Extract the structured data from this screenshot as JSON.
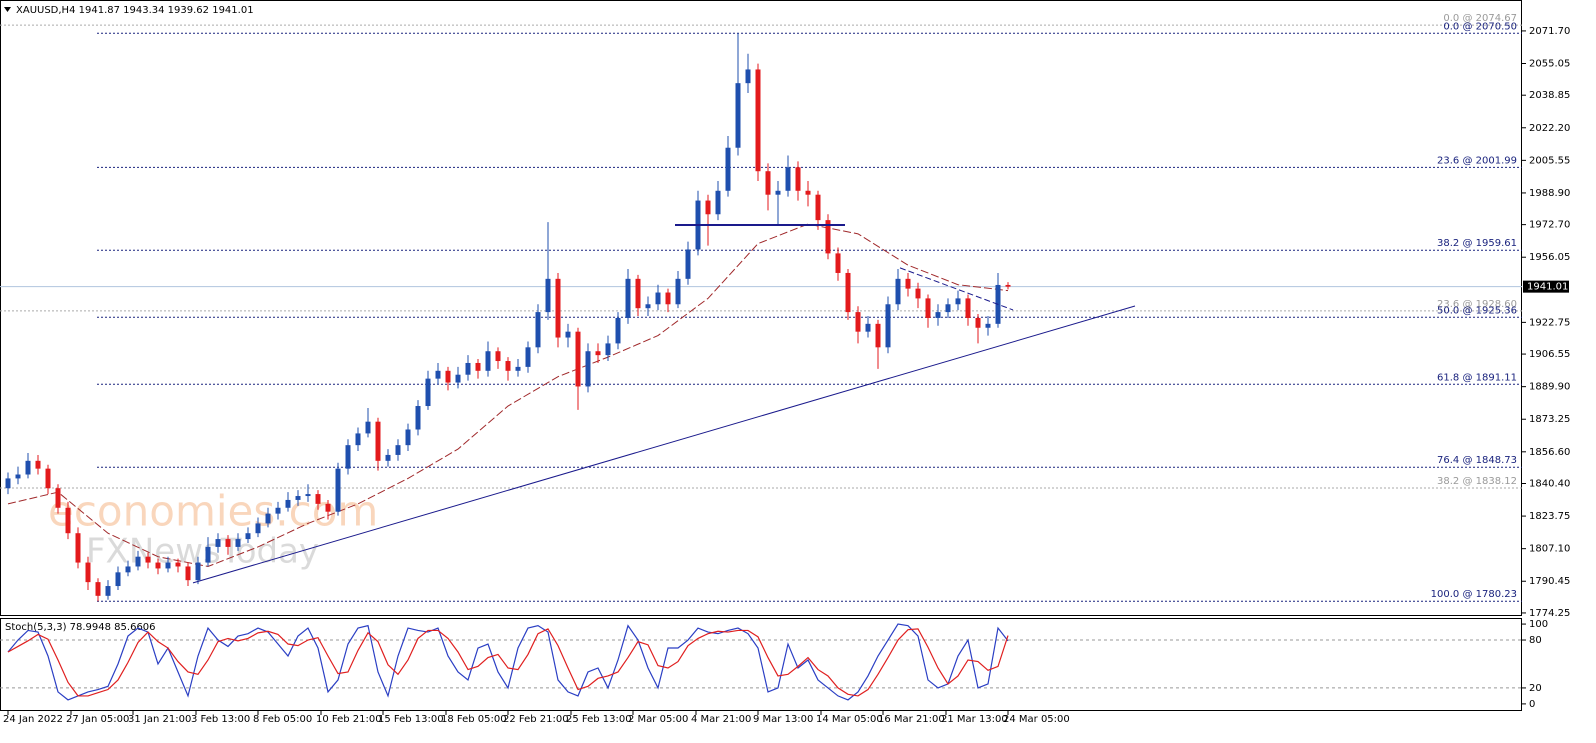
{
  "chart_data": [
    {
      "type": "candlestick",
      "title": "XAUUSD,H4  1941.87 1943.34 1939.62 1941.01",
      "watermarks": [
        "economies.com",
        "FXNewsToday"
      ],
      "up_color": "#1f4fae",
      "down_color": "#e31a1c",
      "ohlc": [
        [
          1838,
          1846,
          1835,
          1843
        ],
        [
          1843,
          1849,
          1840,
          1845
        ],
        [
          1845,
          1856,
          1843,
          1852
        ],
        [
          1852,
          1855,
          1845,
          1848
        ],
        [
          1848,
          1850,
          1835,
          1838
        ],
        [
          1838,
          1840,
          1825,
          1828
        ],
        [
          1828,
          1831,
          1812,
          1815
        ],
        [
          1815,
          1818,
          1797,
          1800
        ],
        [
          1800,
          1803,
          1786,
          1790
        ],
        [
          1790,
          1792,
          1780.23,
          1783
        ],
        [
          1783,
          1791,
          1781,
          1788
        ],
        [
          1788,
          1798,
          1786,
          1795
        ],
        [
          1795,
          1801,
          1793,
          1798
        ],
        [
          1798,
          1806,
          1796,
          1803
        ],
        [
          1803,
          1805,
          1797,
          1800
        ],
        [
          1800,
          1802,
          1794,
          1797
        ],
        [
          1797,
          1803,
          1795,
          1800
        ],
        [
          1800,
          1802,
          1795,
          1798
        ],
        [
          1798,
          1800,
          1788,
          1791
        ],
        [
          1791,
          1803,
          1789,
          1800
        ],
        [
          1800,
          1813,
          1798,
          1808
        ],
        [
          1808,
          1815,
          1805,
          1812
        ],
        [
          1812,
          1814,
          1804,
          1808
        ],
        [
          1808,
          1815,
          1806,
          1812
        ],
        [
          1812,
          1818,
          1810,
          1815
        ],
        [
          1815,
          1823,
          1813,
          1820
        ],
        [
          1820,
          1828,
          1818,
          1825
        ],
        [
          1825,
          1831,
          1822,
          1828
        ],
        [
          1828,
          1836,
          1826,
          1832
        ],
        [
          1832,
          1837,
          1829,
          1834
        ],
        [
          1834,
          1840,
          1831,
          1835
        ],
        [
          1835,
          1837,
          1827,
          1830
        ],
        [
          1830,
          1832,
          1822,
          1826
        ],
        [
          1826,
          1851,
          1824,
          1848
        ],
        [
          1848,
          1863,
          1845,
          1860
        ],
        [
          1860,
          1869,
          1857,
          1866
        ],
        [
          1866,
          1879,
          1864,
          1872
        ],
        [
          1872,
          1874,
          1847,
          1852
        ],
        [
          1852,
          1858,
          1849,
          1855
        ],
        [
          1855,
          1863,
          1852,
          1860
        ],
        [
          1860,
          1871,
          1857,
          1868
        ],
        [
          1868,
          1883,
          1865,
          1880
        ],
        [
          1880,
          1898,
          1878,
          1894
        ],
        [
          1894,
          1902,
          1891,
          1898
        ],
        [
          1898,
          1900,
          1888,
          1892
        ],
        [
          1892,
          1900,
          1889,
          1896
        ],
        [
          1896,
          1906,
          1893,
          1902
        ],
        [
          1902,
          1904,
          1894,
          1898
        ],
        [
          1898,
          1913,
          1895,
          1908
        ],
        [
          1908,
          1910,
          1899,
          1903
        ],
        [
          1903,
          1905,
          1893,
          1898
        ],
        [
          1898,
          1904,
          1895,
          1900
        ],
        [
          1900,
          1913,
          1897,
          1910
        ],
        [
          1910,
          1932,
          1907,
          1928
        ],
        [
          1928,
          1974,
          1924,
          1945
        ],
        [
          1945,
          1948,
          1910,
          1915
        ],
        [
          1915,
          1922,
          1910,
          1918
        ],
        [
          1918,
          1920,
          1878,
          1890
        ],
        [
          1890,
          1912,
          1887,
          1908
        ],
        [
          1908,
          1912,
          1902,
          1906
        ],
        [
          1906,
          1916,
          1903,
          1912
        ],
        [
          1912,
          1928,
          1909,
          1925
        ],
        [
          1925,
          1950,
          1922,
          1945
        ],
        [
          1945,
          1947,
          1926,
          1930
        ],
        [
          1930,
          1936,
          1926,
          1932
        ],
        [
          1932,
          1942,
          1929,
          1938
        ],
        [
          1938,
          1940,
          1928,
          1932
        ],
        [
          1932,
          1949,
          1930,
          1945
        ],
        [
          1945,
          1964,
          1942,
          1960
        ],
        [
          1960,
          1990,
          1957,
          1985
        ],
        [
          1985,
          1988,
          1962,
          1978
        ],
        [
          1978,
          1995,
          1975,
          1990
        ],
        [
          1990,
          2018,
          1987,
          2012
        ],
        [
          2012,
          2070.5,
          2008,
          2045
        ],
        [
          2045,
          2060,
          2040,
          2052
        ],
        [
          2052,
          2055,
          1995,
          2000
        ],
        [
          2000,
          2004,
          1980,
          1988
        ],
        [
          1988,
          1995,
          1972,
          1990
        ],
        [
          1990,
          2008,
          1987,
          2002
        ],
        [
          2002,
          2005,
          1985,
          1990
        ],
        [
          1990,
          1995,
          1982,
          1988
        ],
        [
          1988,
          1990,
          1970,
          1975
        ],
        [
          1975,
          1978,
          1955,
          1958
        ],
        [
          1958,
          1961,
          1944,
          1948
        ],
        [
          1948,
          1950,
          1924,
          1928
        ],
        [
          1928,
          1931,
          1912,
          1918
        ],
        [
          1918,
          1926,
          1915,
          1922
        ],
        [
          1922,
          1924,
          1899,
          1910
        ],
        [
          1910,
          1936,
          1907,
          1932
        ],
        [
          1932,
          1950,
          1929,
          1945
        ],
        [
          1945,
          1948,
          1936,
          1940
        ],
        [
          1940,
          1943,
          1930,
          1935
        ],
        [
          1935,
          1937,
          1920,
          1925
        ],
        [
          1925,
          1932,
          1921,
          1928
        ],
        [
          1928,
          1935,
          1925,
          1932
        ],
        [
          1932,
          1939,
          1929,
          1935
        ],
        [
          1935,
          1937,
          1921,
          1925
        ],
        [
          1925,
          1927,
          1912,
          1920
        ],
        [
          1920,
          1926,
          1916,
          1922
        ],
        [
          1922,
          1948,
          1920,
          1941.87
        ],
        [
          1941.87,
          1943.34,
          1939.62,
          1941.01
        ]
      ],
      "xlim": [
        -0.8,
        151.4
      ],
      "xticks": [
        {
          "value": 0,
          "label": "24 Jan 2022"
        },
        {
          "value": 6.3,
          "label": "27 Jan 05:00"
        },
        {
          "value": 12.5,
          "label": "31 Jan 21:00"
        },
        {
          "value": 18.8,
          "label": "3 Feb 13:00"
        },
        {
          "value": 25,
          "label": "8 Feb 05:00"
        },
        {
          "value": 31.3,
          "label": "10 Feb 21:00"
        },
        {
          "value": 37.5,
          "label": "15 Feb 13:00"
        },
        {
          "value": 43.8,
          "label": "18 Feb 05:00"
        },
        {
          "value": 50,
          "label": "22 Feb 21:00"
        },
        {
          "value": 56.3,
          "label": "25 Feb 13:00"
        },
        {
          "value": 62.5,
          "label": "2 Mar 05:00"
        },
        {
          "value": 68.8,
          "label": "4 Mar 21:00"
        },
        {
          "value": 75,
          "label": "9 Mar 13:00"
        },
        {
          "value": 81.3,
          "label": "14 Mar 05:00"
        },
        {
          "value": 87.5,
          "label": "16 Mar 21:00"
        },
        {
          "value": 93.8,
          "label": "21 Mar 13:00"
        },
        {
          "value": 100,
          "label": "24 Mar 05:00"
        }
      ],
      "ylim": [
        1773.2,
        2087.5
      ],
      "yticks": [
        {
          "value": 2071.7,
          "label": "2071.70"
        },
        2055.05,
        2038.85,
        {
          "value": 2022.2,
          "label": "2022.20"
        },
        2005.55,
        {
          "value": 1988.9,
          "label": "1988.90"
        },
        {
          "value": 1972.7,
          "label": "1972.70"
        },
        1956.05,
        1922.75,
        1906.55,
        {
          "value": 1889.9,
          "label": "1889.90"
        },
        1873.25,
        {
          "value": 1856.6,
          "label": "1856.60"
        },
        {
          "value": 1840.4,
          "label": "1840.40"
        },
        1823.75,
        {
          "value": 1807.1,
          "label": "1807.10"
        },
        1790.45,
        1774.25
      ],
      "last_price": 1941.01,
      "moving_average": {
        "color": "#a0282a",
        "x": [
          0,
          5,
          10,
          15,
          20,
          25,
          30,
          35,
          40,
          45,
          50,
          55,
          60,
          65,
          70,
          75,
          80,
          85,
          90,
          95,
          100
        ],
        "values": [
          1830,
          1836,
          1815,
          1803,
          1798,
          1808,
          1820,
          1830,
          1843,
          1858,
          1880,
          1895,
          1905,
          1916,
          1935,
          1963,
          1973,
          1968,
          1952,
          1942,
          1939
        ]
      },
      "fib_color": "#1a237e",
      "fib_levels": [
        {
          "value": 2070.5,
          "label": "0.0 @ 2070.50"
        },
        {
          "value": 2001.99,
          "label": "23.6 @ 2001.99"
        },
        {
          "value": 1959.61,
          "label": "38.2 @ 1959.61"
        },
        {
          "value": 1925.36,
          "label": "50.0 @ 1925.36"
        },
        {
          "value": 1891.11,
          "label": "61.8 @ 1891.11"
        },
        {
          "value": 1848.73,
          "label": "76.4 @ 1848.73"
        },
        {
          "value": 1780.23,
          "label": "100.0 @ 1780.23"
        }
      ],
      "fib_levels_faint": [
        {
          "value": 2074.67,
          "label": "0.0 @ 2074.67"
        },
        {
          "value": 1928.6,
          "label": "23.6 @ 1928.60"
        },
        {
          "value": 1838.12,
          "label": "38.2 @ 1838.12"
        }
      ],
      "trendlines": [
        {
          "style": "solid",
          "x": [
            18.5,
            112.7
          ],
          "y": [
            1789.6,
            1931.1
          ]
        },
        {
          "style": "thick",
          "x": [
            66.7,
            83.7
          ],
          "y": [
            1972.5,
            1972.5
          ]
        },
        {
          "style": "dashed",
          "x": [
            89.2,
            100.5
          ],
          "y": [
            1950.6,
            1929.1
          ]
        }
      ]
    },
    {
      "type": "line",
      "title": "Stoch(5,3,3) 78.9948 85.6606",
      "ylim": [
        -8.9,
        107.6
      ],
      "yticks": [
        100,
        80,
        20,
        0
      ],
      "levels": [
        80,
        20
      ],
      "series": [
        {
          "color": "#2b3fc4",
          "values": [
            65,
            80,
            92,
            90,
            60,
            15,
            5,
            10,
            15,
            18,
            22,
            50,
            85,
            95,
            90,
            50,
            70,
            40,
            10,
            60,
            95,
            80,
            72,
            85,
            88,
            95,
            90,
            75,
            60,
            85,
            95,
            70,
            15,
            30,
            75,
            95,
            98,
            40,
            10,
            60,
            95,
            92,
            90,
            95,
            60,
            40,
            30,
            70,
            75,
            40,
            20,
            70,
            95,
            98,
            90,
            30,
            15,
            10,
            40,
            45,
            20,
            55,
            98,
            80,
            45,
            20,
            70,
            70,
            80,
            95,
            90,
            88,
            92,
            95,
            88,
            70,
            15,
            20,
            75,
            45,
            55,
            30,
            20,
            10,
            5,
            15,
            35,
            60,
            80,
            100,
            98,
            85,
            30,
            20,
            25,
            60,
            80,
            20,
            25,
            95,
            78.9948
          ]
        },
        {
          "color": "#e02020",
          "values": [
            65,
            72,
            79,
            87,
            81,
            55,
            27,
            10,
            10,
            14,
            18,
            30,
            52,
            77,
            90,
            78,
            70,
            53,
            40,
            37,
            55,
            78,
            82,
            79,
            82,
            89,
            91,
            87,
            75,
            73,
            80,
            83,
            60,
            38,
            40,
            67,
            89,
            78,
            49,
            37,
            55,
            82,
            92,
            92,
            82,
            65,
            43,
            47,
            58,
            62,
            45,
            43,
            62,
            88,
            94,
            73,
            45,
            18,
            22,
            32,
            35,
            40,
            58,
            78,
            74,
            48,
            45,
            53,
            73,
            82,
            88,
            91,
            90,
            92,
            92,
            84,
            58,
            35,
            37,
            47,
            58,
            43,
            35,
            20,
            12,
            10,
            18,
            37,
            58,
            80,
            93,
            94,
            71,
            45,
            25,
            35,
            55,
            53,
            42,
            47,
            85.6606
          ]
        }
      ]
    }
  ]
}
